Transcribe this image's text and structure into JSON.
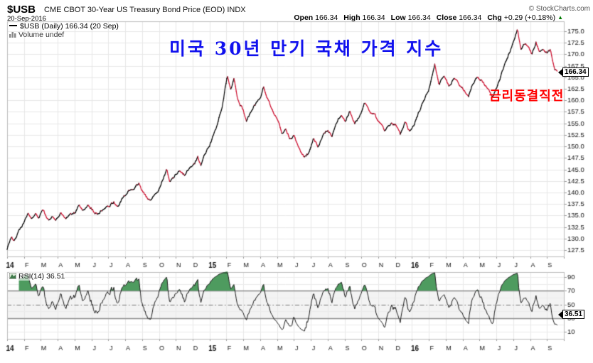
{
  "header": {
    "symbol": "$USB",
    "title": "CME CBOT 30-Year US Treasury Bond Price (EOD) INDX",
    "date": "20-Sep-2016",
    "copyright": "© StockCharts.com",
    "quote": {
      "open_label": "Open",
      "open": "166.34",
      "high_label": "High",
      "high": "166.34",
      "low_label": "Low",
      "low": "166.34",
      "close_label": "Close",
      "close": "166.34",
      "chg_label": "Chg",
      "chg": "+0.29 (+0.18%)",
      "up_triangle": "▲",
      "chg_color": "#007a00"
    }
  },
  "main_chart": {
    "legend_price": "$USB (Daily) 166.34 (20 Sep)",
    "legend_volume": "Volume undef",
    "last_price_label": "166.34",
    "annotation_blue": "미국 30년 만기 국채 가격 지수",
    "annotation_blue_color": "#1111ee",
    "annotation_red": "금리동결직전",
    "annotation_red_color": "#ff0000"
  },
  "rsi_panel": {
    "legend": "RSI(14) 36.51",
    "value_label": "36.51"
  },
  "chart_data": [
    {
      "type": "line",
      "title": "$USB (Daily) price",
      "x_unit": "months since Jan-2014 (0 = 2014-01-01)",
      "x_axis_labels": [
        "14",
        "F",
        "M",
        "A",
        "M",
        "J",
        "J",
        "A",
        "S",
        "O",
        "N",
        "D",
        "15",
        "F",
        "M",
        "A",
        "M",
        "J",
        "J",
        "A",
        "S",
        "O",
        "N",
        "D",
        "16",
        "F",
        "M",
        "A",
        "M",
        "J",
        "J",
        "A",
        "S"
      ],
      "ylim": [
        126.1,
        177.2
      ],
      "y_ticks": [
        127.5,
        130.0,
        132.5,
        135.0,
        137.5,
        140.0,
        142.5,
        145.0,
        147.5,
        150.0,
        152.5,
        155.0,
        157.5,
        160.0,
        162.5,
        165.0,
        167.5,
        170.0,
        172.5,
        175.0
      ],
      "up_color": "#000000",
      "down_color": "#cc0e2e",
      "grid": true,
      "last_close": 166.34,
      "keypoints": [
        [
          0,
          127.8
        ],
        [
          0.25,
          130.3
        ],
        [
          0.45,
          129.6
        ],
        [
          0.7,
          131.8
        ],
        [
          1.0,
          133.3
        ],
        [
          1.25,
          135.6
        ],
        [
          1.45,
          134.0
        ],
        [
          1.7,
          135.3
        ],
        [
          1.9,
          134.6
        ],
        [
          2.15,
          136.2
        ],
        [
          2.4,
          133.9
        ],
        [
          2.65,
          134.6
        ],
        [
          2.9,
          133.9
        ],
        [
          3.2,
          135.7
        ],
        [
          3.45,
          134.4
        ],
        [
          3.7,
          135.1
        ],
        [
          4.0,
          135.6
        ],
        [
          4.25,
          137.1
        ],
        [
          4.5,
          136.1
        ],
        [
          4.8,
          137.4
        ],
        [
          5.1,
          136.0
        ],
        [
          5.4,
          135.2
        ],
        [
          5.7,
          136.6
        ],
        [
          6.0,
          136.9
        ],
        [
          6.3,
          137.9
        ],
        [
          6.6,
          137.2
        ],
        [
          6.9,
          139.2
        ],
        [
          7.2,
          140.2
        ],
        [
          7.5,
          140.9
        ],
        [
          7.8,
          142.0
        ],
        [
          8.05,
          139.9
        ],
        [
          8.3,
          138.9
        ],
        [
          8.5,
          138.1
        ],
        [
          8.75,
          139.6
        ],
        [
          9.0,
          140.4
        ],
        [
          9.45,
          145.1
        ],
        [
          9.65,
          142.4
        ],
        [
          9.9,
          143.4
        ],
        [
          10.2,
          144.6
        ],
        [
          10.5,
          143.7
        ],
        [
          10.8,
          145.2
        ],
        [
          11.1,
          146.3
        ],
        [
          11.3,
          147.6
        ],
        [
          11.5,
          146.1
        ],
        [
          11.75,
          148.4
        ],
        [
          12.0,
          150.2
        ],
        [
          12.4,
          154.2
        ],
        [
          12.75,
          158.9
        ],
        [
          13.05,
          165.3
        ],
        [
          13.25,
          162.7
        ],
        [
          13.45,
          164.6
        ],
        [
          13.7,
          159.8
        ],
        [
          13.95,
          158.3
        ],
        [
          14.2,
          155.4
        ],
        [
          14.5,
          158.1
        ],
        [
          14.8,
          159.4
        ],
        [
          15.05,
          160.8
        ],
        [
          15.2,
          162.9
        ],
        [
          15.5,
          159.9
        ],
        [
          15.8,
          157.1
        ],
        [
          16.05,
          155.8
        ],
        [
          16.3,
          152.6
        ],
        [
          16.5,
          154.1
        ],
        [
          16.75,
          151.6
        ],
        [
          17.0,
          152.2
        ],
        [
          17.3,
          149.6
        ],
        [
          17.6,
          147.9
        ],
        [
          17.9,
          148.6
        ],
        [
          18.15,
          151.6
        ],
        [
          18.45,
          149.9
        ],
        [
          18.75,
          152.4
        ],
        [
          19.0,
          153.6
        ],
        [
          19.25,
          152.1
        ],
        [
          19.55,
          155.4
        ],
        [
          19.8,
          157.1
        ],
        [
          20.05,
          155.4
        ],
        [
          20.3,
          157.6
        ],
        [
          20.6,
          154.9
        ],
        [
          20.9,
          156.6
        ],
        [
          21.2,
          159.4
        ],
        [
          21.5,
          157.2
        ],
        [
          21.8,
          156.8
        ],
        [
          22.1,
          154.9
        ],
        [
          22.4,
          153.2
        ],
        [
          22.7,
          154.7
        ],
        [
          23.0,
          154.9
        ],
        [
          23.3,
          152.6
        ],
        [
          23.6,
          155.1
        ],
        [
          23.85,
          153.4
        ],
        [
          24.1,
          154.4
        ],
        [
          24.4,
          157.4
        ],
        [
          24.7,
          159.9
        ],
        [
          25.0,
          162.4
        ],
        [
          25.35,
          167.7
        ],
        [
          25.6,
          163.6
        ],
        [
          25.9,
          165.4
        ],
        [
          26.2,
          163.1
        ],
        [
          26.5,
          164.7
        ],
        [
          26.8,
          163.4
        ],
        [
          27.1,
          162.1
        ],
        [
          27.35,
          160.9
        ],
        [
          27.6,
          163.6
        ],
        [
          27.9,
          165.3
        ],
        [
          28.2,
          164.1
        ],
        [
          28.5,
          162.3
        ],
        [
          28.75,
          160.9
        ],
        [
          29.0,
          162.4
        ],
        [
          29.35,
          166.3
        ],
        [
          29.65,
          169.1
        ],
        [
          29.9,
          171.6
        ],
        [
          30.1,
          173.4
        ],
        [
          30.25,
          175.5
        ],
        [
          30.45,
          170.8
        ],
        [
          30.65,
          172.3
        ],
        [
          30.9,
          171.9
        ],
        [
          31.1,
          169.9
        ],
        [
          31.35,
          172.7
        ],
        [
          31.55,
          170.6
        ],
        [
          31.8,
          171.3
        ],
        [
          32.0,
          170.4
        ],
        [
          32.2,
          170.9
        ],
        [
          32.45,
          166.6
        ],
        [
          32.65,
          166.34
        ]
      ]
    },
    {
      "type": "line",
      "title": "RSI(14)",
      "derived": "RSI(14) computed from the daily price series above (Wilder smoothing)",
      "period": 14,
      "last": 36.51,
      "overbought": 70,
      "midline": 50,
      "oversold": 30,
      "ylim": [
        0,
        100
      ],
      "y_ticks": [
        90,
        70,
        50,
        30,
        10
      ],
      "line_color": "#1a1a1a",
      "overbought_fill": "#4e9b5f"
    }
  ]
}
